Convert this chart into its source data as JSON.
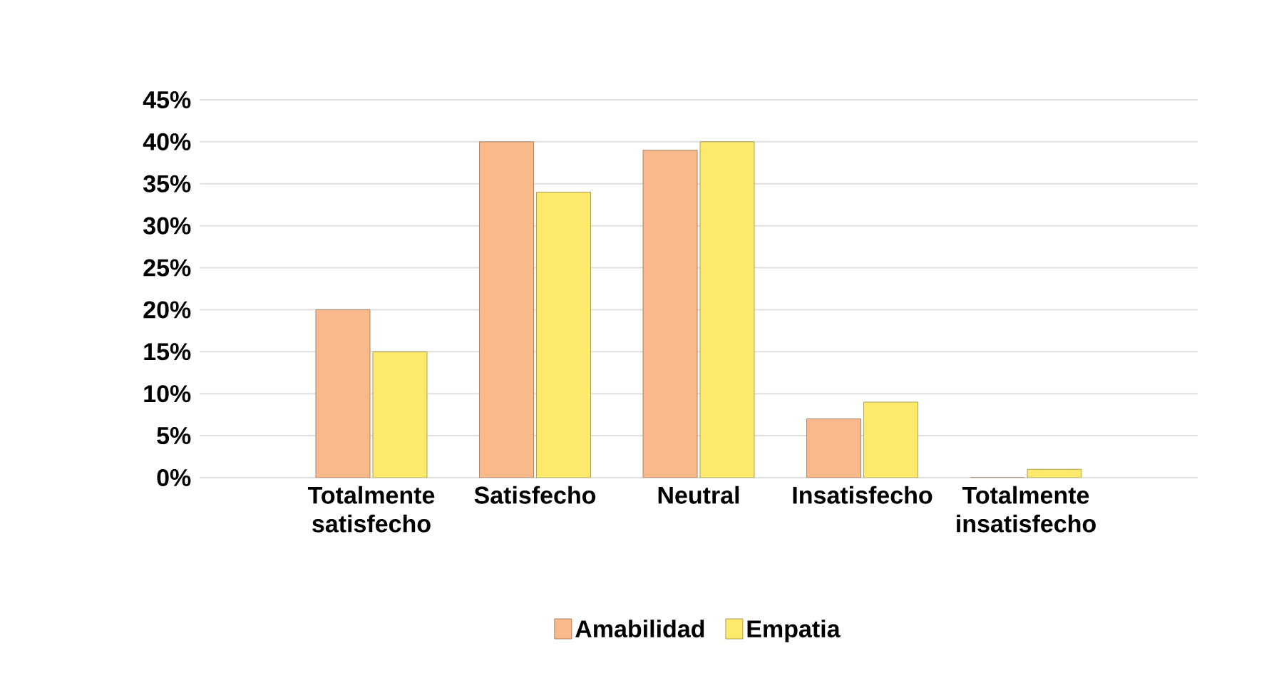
{
  "chart_data": {
    "type": "bar",
    "categories": [
      "Totalmente satisfecho",
      "Satisfecho",
      "Neutral",
      "Insatisfecho",
      "Totalmente insatisfecho"
    ],
    "series": [
      {
        "name": "Amabilidad",
        "color": "#f9b98a",
        "values": [
          20,
          40,
          39,
          7,
          0
        ]
      },
      {
        "name": "Empatia",
        "color": "#fde96b",
        "values": [
          15,
          34,
          40,
          9,
          1
        ]
      }
    ],
    "ylim": [
      0,
      45
    ],
    "yticks": [
      {
        "value": 0,
        "label": "0%"
      },
      {
        "value": 5,
        "label": "5%"
      },
      {
        "value": 10,
        "label": "10%"
      },
      {
        "value": 15,
        "label": "15%"
      },
      {
        "value": 20,
        "label": "20%"
      },
      {
        "value": 25,
        "label": "25%"
      },
      {
        "value": 30,
        "label": "30%"
      },
      {
        "value": 35,
        "label": "35%"
      },
      {
        "value": 40,
        "label": "40%"
      },
      {
        "value": 45,
        "label": "45%"
      }
    ],
    "grid": "y",
    "legend": "bottom"
  }
}
